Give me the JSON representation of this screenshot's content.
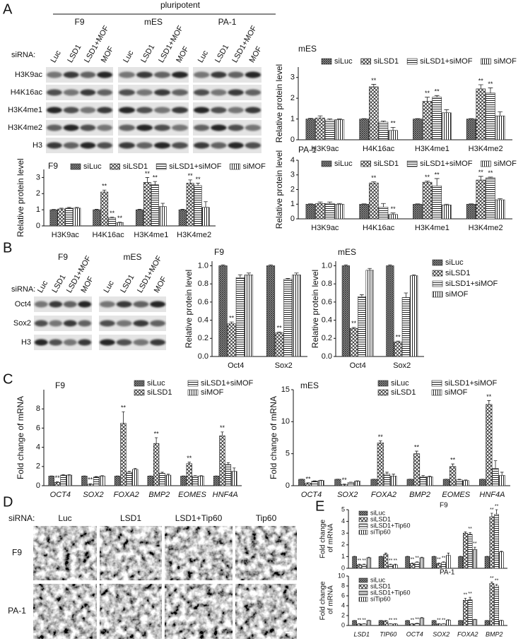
{
  "panel_labels": [
    "A",
    "B",
    "C",
    "D",
    "E"
  ],
  "blots": [
    {
      "header": "pluripotent",
      "row_label_title": "siRNA:",
      "groups": [
        {
          "name": "F9",
          "lanes": [
            "Luc",
            "LSD1",
            "LSD1+MOF",
            "MOF"
          ]
        },
        {
          "name": "mES",
          "lanes": [
            "Luc",
            "LSD1",
            "LSD1+MOF",
            "MOF"
          ]
        },
        {
          "name": "PA-1",
          "lanes": [
            "Luc",
            "LSD1",
            "LSD1+MOF",
            "MOF"
          ]
        }
      ],
      "rows": [
        "H3K9ac",
        "H4K16ac",
        "H3K4me1",
        "H3K4me2",
        "H3"
      ]
    },
    {
      "row_label_title": "siRNA:",
      "groups": [
        {
          "name": "F9",
          "lanes": [
            "Luc",
            "LSD1",
            "LSD1+MOF",
            "MOF"
          ]
        },
        {
          "name": "mES",
          "lanes": [
            "Luc",
            "LSD1",
            "LSD1+MOF",
            "MOF"
          ]
        }
      ],
      "rows": [
        "Oct4",
        "Sox2",
        "H3"
      ]
    }
  ],
  "microscopy": {
    "row_label_title": "siRNA:",
    "columns": [
      "Luc",
      "LSD1",
      "LSD1+Tip60",
      "Tip60"
    ],
    "rows": [
      "F9",
      "PA-1"
    ]
  },
  "chart_data": [
    {
      "type": "bar",
      "title": "F9",
      "ylabel": "Relative protein level",
      "legend": "top-row",
      "categories": [
        "H3K9ac",
        "H4K16ac",
        "H3K4me1",
        "H3K4me2"
      ],
      "ylim": [
        0,
        3.5
      ],
      "yticks": [
        0,
        1,
        2,
        3
      ],
      "series": [
        {
          "name": "siLuc",
          "color": "#222222",
          "pattern": "dense",
          "values": [
            1,
            1,
            1,
            1
          ],
          "errors": [
            0.02,
            0.03,
            0.03,
            0.03
          ]
        },
        {
          "name": "siLSD1",
          "color": "#222222",
          "pattern": "cross",
          "values": [
            1.05,
            2.1,
            2.7,
            2.65
          ],
          "errors": [
            0.05,
            0.12,
            0.3,
            0.2
          ],
          "significance": [
            null,
            "**",
            "**",
            "**"
          ]
        },
        {
          "name": "siLSD1+siMOF",
          "color": "#222222",
          "pattern": "horizontal",
          "values": [
            1.1,
            0.5,
            2.55,
            2.5
          ],
          "errors": [
            0.05,
            0.04,
            0.2,
            0.15
          ],
          "significance": [
            null,
            "**",
            "**",
            "**"
          ]
        },
        {
          "name": "siMOF",
          "color": "#222222",
          "pattern": "vertical",
          "values": [
            1.1,
            0.2,
            1.2,
            1.15
          ],
          "errors": [
            0.05,
            0.03,
            0.2,
            0.35
          ],
          "significance": [
            null,
            "**",
            null,
            null
          ]
        }
      ]
    },
    {
      "type": "bar",
      "title": "mES",
      "ylabel": "Relative protein level",
      "legend": "top-row",
      "categories": [
        "H3K9ac",
        "H4K16ac",
        "H3K4me1",
        "H3K4me2"
      ],
      "ylim": [
        0,
        3.5
      ],
      "yticks": [
        0,
        1,
        2,
        3
      ],
      "series": [
        {
          "name": "siLuc",
          "color": "#222222",
          "pattern": "dense",
          "values": [
            1,
            1,
            1,
            1
          ],
          "errors": [
            0.03,
            0.02,
            0.02,
            0.02
          ]
        },
        {
          "name": "siLSD1",
          "color": "#222222",
          "pattern": "cross",
          "values": [
            1.05,
            2.55,
            1.85,
            2.45
          ],
          "errors": [
            0.1,
            0.12,
            0.2,
            0.2
          ],
          "significance": [
            null,
            "**",
            "**",
            "**"
          ]
        },
        {
          "name": "siLSD1+siMOF",
          "color": "#222222",
          "pattern": "horizontal",
          "values": [
            0.95,
            0.85,
            2.05,
            2.25
          ],
          "errors": [
            0.05,
            0.05,
            0.08,
            0.25
          ],
          "significance": [
            null,
            null,
            "**",
            "**"
          ]
        },
        {
          "name": "siMOF",
          "color": "#222222",
          "pattern": "vertical",
          "values": [
            0.97,
            0.45,
            1.3,
            1.15
          ],
          "errors": [
            0.03,
            0.15,
            0.15,
            0.2
          ],
          "significance": [
            null,
            "**",
            null,
            null
          ]
        }
      ]
    },
    {
      "type": "bar",
      "title": "PA-1",
      "ylabel": "Relative protein level",
      "legend": "top-row",
      "categories": [
        "H3K9ac",
        "H4K16ac",
        "H3K4me1",
        "H3K4me2"
      ],
      "ylim": [
        0,
        4
      ],
      "yticks": [
        0,
        1,
        2,
        3,
        4
      ],
      "series": [
        {
          "name": "siLuc",
          "color": "#222222",
          "pattern": "dense",
          "values": [
            1,
            1,
            1,
            1
          ],
          "errors": [
            0.02,
            0.02,
            0.02,
            0.02
          ]
        },
        {
          "name": "siLSD1",
          "color": "#222222",
          "pattern": "cross",
          "values": [
            1.05,
            2.45,
            2.5,
            2.65
          ],
          "errors": [
            0.1,
            0.08,
            0.08,
            0.25
          ],
          "significance": [
            null,
            "**",
            "**",
            "**"
          ]
        },
        {
          "name": "siLSD1+siMOF",
          "color": "#222222",
          "pattern": "horizontal",
          "values": [
            1.05,
            0.8,
            2.25,
            2.8
          ],
          "errors": [
            0.1,
            0.25,
            0.5,
            0.05
          ],
          "significance": [
            null,
            null,
            "**",
            "**"
          ]
        },
        {
          "name": "siMOF",
          "color": "#222222",
          "pattern": "vertical",
          "values": [
            1,
            0.3,
            0.95,
            1.3
          ],
          "errors": [
            0.05,
            0.1,
            0.05,
            0.08
          ],
          "significance": [
            null,
            "**",
            null,
            null
          ]
        }
      ]
    },
    {
      "type": "bar",
      "title": "F9",
      "ylabel": "Relative protein level",
      "categories": [
        "Oct4",
        "Sox2"
      ],
      "ylim": [
        0,
        1.05
      ],
      "yticks": [
        {
          "value": 0,
          "label": "0.0"
        },
        {
          "value": 0.2,
          "label": "0.2"
        },
        {
          "value": 0.4,
          "label": "0.4"
        },
        {
          "value": 0.6,
          "label": "0.6"
        },
        {
          "value": 0.8,
          "label": "0.8"
        },
        {
          "value": 1,
          "label": "1.0"
        }
      ],
      "series": [
        {
          "color": "#222222",
          "pattern": "dense",
          "values": [
            1,
            1
          ],
          "errors": [
            0.01,
            0.01
          ]
        },
        {
          "color": "#222222",
          "pattern": "cross",
          "values": [
            0.36,
            0.26
          ],
          "errors": [
            0.02,
            0.01
          ],
          "significance": [
            "**",
            "**"
          ]
        },
        {
          "color": "#222222",
          "pattern": "horizontal",
          "values": [
            0.87,
            0.85
          ],
          "errors": [
            0.03,
            0.01
          ]
        },
        {
          "color": "#222222",
          "pattern": "vertical",
          "values": [
            0.9,
            0.9
          ],
          "errors": [
            0.02,
            0.02
          ]
        }
      ]
    },
    {
      "type": "bar",
      "title": "mES",
      "ylabel": "Relative protein level",
      "legend": "outside-right",
      "categories": [
        "Oct4",
        "Sox2"
      ],
      "ylim": [
        0,
        1.05
      ],
      "yticks": [
        {
          "value": 0,
          "label": "0.0"
        },
        {
          "value": 0.2,
          "label": "0.2"
        },
        {
          "value": 0.4,
          "label": "0.4"
        },
        {
          "value": 0.6,
          "label": "0.6"
        },
        {
          "value": 0.8,
          "label": "0.8"
        },
        {
          "value": 1,
          "label": "1.0"
        }
      ],
      "series": [
        {
          "name": "siLuc",
          "color": "#222222",
          "pattern": "dense",
          "values": [
            1,
            1
          ],
          "errors": [
            0.01,
            0.01
          ]
        },
        {
          "name": "siLSD1",
          "color": "#222222",
          "pattern": "cross",
          "values": [
            0.31,
            0.16
          ],
          "errors": [
            0.01,
            0.01
          ],
          "significance": [
            "**",
            "**"
          ]
        },
        {
          "name": "siLSD1+siMOF",
          "color": "#222222",
          "pattern": "horizontal",
          "values": [
            0.66,
            0.65
          ],
          "errors": [
            0.02,
            0.05
          ]
        },
        {
          "name": "siMOF",
          "color": "#222222",
          "pattern": "vertical",
          "values": [
            0.95,
            0.89
          ],
          "errors": [
            0.02,
            0.01
          ]
        }
      ]
    },
    {
      "type": "bar",
      "title": "F9",
      "ylabel": "Fold change of mRNA",
      "legend": "two-columns",
      "category_style": "italic",
      "categories": [
        "OCT4",
        "SOX2",
        "FOXA2",
        "BMP2",
        "EOMES",
        "HNF4A"
      ],
      "ylim": [
        0,
        10
      ],
      "yticks": [
        0,
        2,
        4,
        6,
        8
      ],
      "series": [
        {
          "name": "siLuc",
          "color": "#222222",
          "pattern": "dense",
          "values": [
            1,
            1,
            1,
            1,
            1,
            1
          ],
          "errors": [
            0.02,
            0.02,
            0.02,
            0.02,
            0.02,
            0.02
          ]
        },
        {
          "name": "siLSD1",
          "color": "#222222",
          "pattern": "cross",
          "values": [
            0.35,
            0.15,
            6.5,
            4.4,
            2.3,
            5.2
          ],
          "errors": [
            0.05,
            0.05,
            1.2,
            0.6,
            0.15,
            0.4
          ],
          "significance": [
            "**",
            "**",
            "**",
            "**",
            "**",
            "**"
          ]
        },
        {
          "name": "siLSD1+siMOF",
          "color": "#222222",
          "pattern": "horizontal",
          "values": [
            1.1,
            0.9,
            1.4,
            1.3,
            1,
            2.2
          ],
          "errors": [
            0.05,
            0.05,
            0.1,
            0.1,
            0.05,
            0.2
          ]
        },
        {
          "name": "siMOF",
          "color": "#222222",
          "pattern": "vertical",
          "values": [
            1.1,
            1,
            1.7,
            1.1,
            1,
            1.5
          ],
          "errors": [
            0.05,
            0.05,
            0.1,
            0.1,
            0.05,
            0.35
          ]
        }
      ]
    },
    {
      "type": "bar",
      "title": "mES",
      "ylabel": "Fold change of mRNA",
      "legend": "two-columns",
      "category_style": "italic",
      "categories": [
        "OCT4",
        "SOX2",
        "FOXA2",
        "BMP2",
        "EOMES",
        "HNF4A"
      ],
      "ylim": [
        0,
        15
      ],
      "yticks": [
        0,
        5,
        10,
        15
      ],
      "series": [
        {
          "name": "siLuc",
          "color": "#222222",
          "pattern": "dense",
          "values": [
            1,
            1,
            1,
            1,
            1,
            1
          ],
          "errors": [
            0.02,
            0.02,
            0.02,
            0.02,
            0.02,
            0.02
          ]
        },
        {
          "name": "siLSD1",
          "color": "#222222",
          "pattern": "cross",
          "values": [
            0.4,
            0.2,
            6.7,
            5,
            3,
            12.7
          ],
          "errors": [
            0.05,
            0.05,
            0.3,
            0.4,
            0.4,
            0.6
          ],
          "significance": [
            "**",
            "**",
            "**",
            "**",
            "**",
            "**"
          ]
        },
        {
          "name": "siLSD1+siMOF",
          "color": "#222222",
          "pattern": "horizontal",
          "values": [
            0.7,
            0.5,
            1.8,
            1.4,
            0.9,
            2.7
          ],
          "errors": [
            0.05,
            0.05,
            0.3,
            0.2,
            0.1,
            1.2
          ]
        },
        {
          "name": "siMOF",
          "color": "#222222",
          "pattern": "vertical",
          "values": [
            0.8,
            0.7,
            1.5,
            1.4,
            0.8,
            1.6
          ],
          "errors": [
            0.05,
            0.05,
            0.3,
            0.1,
            0.1,
            0.5
          ]
        }
      ]
    },
    {
      "type": "bar",
      "title": "F9",
      "ylabel": "Fold change of mRNA",
      "legend": "column",
      "ylim": [
        0,
        5
      ],
      "yticks": [
        0,
        1,
        2,
        3,
        4,
        5
      ],
      "series": [
        {
          "name": "siLuc",
          "color": "#222222",
          "pattern": "dense",
          "values": [
            1,
            1,
            1,
            1,
            1,
            1
          ],
          "errors": [
            0.02,
            0.02,
            0.02,
            0.02,
            0.02,
            0.02
          ]
        },
        {
          "name": "siLSD1",
          "color": "#222222",
          "pattern": "cross",
          "values": [
            0.3,
            1.2,
            0.4,
            0.4,
            3,
            4.4
          ],
          "errors": [
            0.05,
            0.1,
            0.05,
            0.05,
            0.1,
            0.3
          ],
          "significance": [
            "**",
            null,
            "**",
            "**",
            null,
            "**"
          ]
        },
        {
          "name": "siLSD1+Tip60",
          "color": "#222222",
          "pattern": "horizontal",
          "values": [
            0.3,
            0.3,
            0.5,
            0.5,
            2.9,
            4.6
          ],
          "errors": [
            0.05,
            0.05,
            0.05,
            0.05,
            0.15,
            0.4
          ],
          "significance": [
            "**",
            "**",
            "**",
            "**",
            "**",
            "**"
          ]
        },
        {
          "name": "siTip60",
          "color": "#222222",
          "pattern": "vertical",
          "values": [
            0.9,
            0.3,
            0.9,
            1.1,
            1.6,
            1.4
          ],
          "errors": [
            0.05,
            0.05,
            0.05,
            0.2,
            0.2,
            0.05
          ],
          "significance": [
            null,
            "**",
            null,
            null,
            "**",
            null
          ]
        }
      ]
    },
    {
      "type": "bar",
      "title": "PA-1",
      "ylabel": "Fold change of mRNA",
      "legend": "column",
      "category_style": "italic",
      "categories": [
        "LSD1",
        "TIP60",
        "OCT4",
        "SOX2",
        "FOXA2",
        "BMP2"
      ],
      "ylim": [
        0,
        10
      ],
      "yticks": [
        0,
        2,
        4,
        6,
        8,
        10
      ],
      "series": [
        {
          "name": "siLuc",
          "color": "#222222",
          "pattern": "dense",
          "values": [
            1,
            1,
            1,
            1,
            1,
            1
          ],
          "errors": [
            0.02,
            0.02,
            0.02,
            0.02,
            0.02,
            0.02
          ]
        },
        {
          "name": "siLSD1",
          "color": "#222222",
          "pattern": "cross",
          "values": [
            0.3,
            0.9,
            0.3,
            0.3,
            5.1,
            8.5
          ],
          "errors": [
            0.05,
            0.1,
            0.05,
            0.05,
            0.4,
            0.3
          ],
          "significance": [
            "**",
            null,
            "**",
            "**",
            "**",
            "**"
          ]
        },
        {
          "name": "siLSD1+Tip60",
          "color": "#222222",
          "pattern": "horizontal",
          "values": [
            0.3,
            0.3,
            0.4,
            0.3,
            5.2,
            8
          ],
          "errors": [
            0.05,
            0.05,
            0.05,
            0.05,
            0.5,
            0.3
          ],
          "significance": [
            "**",
            "**",
            "**",
            "**",
            "**",
            "**"
          ]
        },
        {
          "name": "siTip60",
          "color": "#222222",
          "pattern": "vertical",
          "values": [
            1,
            0.3,
            1.5,
            1.1,
            1.2,
            1
          ],
          "errors": [
            0.05,
            0.05,
            0.1,
            0.05,
            0.05,
            0.05
          ],
          "significance": [
            null,
            "**",
            null,
            null,
            null,
            null
          ]
        }
      ]
    }
  ]
}
